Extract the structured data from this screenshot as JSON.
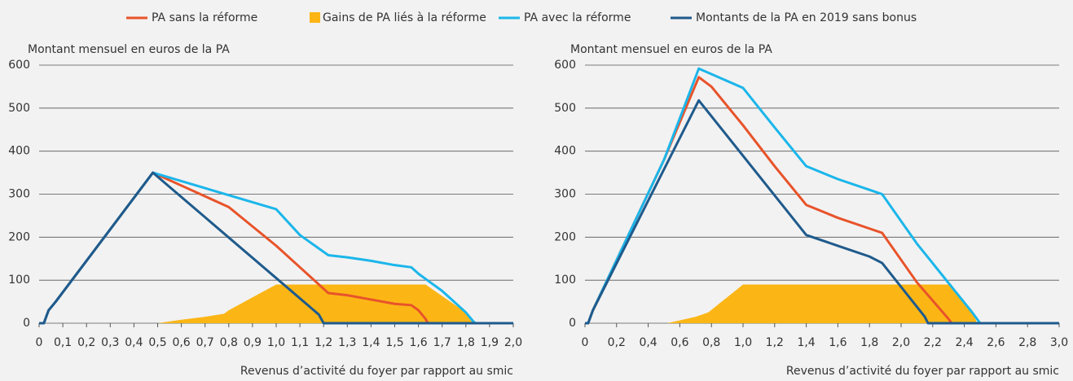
{
  "chart_data": [
    {
      "type": "line",
      "ylabel": "Montant mensuel en euros de la PA",
      "xlabel": "Revenus d’activité du foyer par rapport au smic",
      "xlim": [
        0,
        2
      ],
      "ylim": [
        0,
        600
      ],
      "xticks": [
        0,
        {
          "value": 0.1,
          "label": "0,1"
        },
        {
          "value": 0.2,
          "label": "0,2"
        },
        {
          "value": 0.3,
          "label": "0,3"
        },
        {
          "value": 0.4,
          "label": "0,4"
        },
        {
          "value": 0.5,
          "label": "0,5"
        },
        {
          "value": 0.6,
          "label": "0,6"
        },
        {
          "value": 0.7,
          "label": "0,7"
        },
        {
          "value": 0.8,
          "label": "0,8"
        },
        {
          "value": 0.9,
          "label": "0,9"
        },
        {
          "value": 1,
          "label": "1,0"
        },
        {
          "value": 1.1,
          "label": "1,1"
        },
        {
          "value": 1.2,
          "label": "1,2"
        },
        {
          "value": 1.3,
          "label": "1,3"
        },
        {
          "value": 1.4,
          "label": "1,4"
        },
        {
          "value": 1.5,
          "label": "1,5"
        },
        {
          "value": 1.6,
          "label": "1,6"
        },
        {
          "value": 1.7,
          "label": "1,7"
        },
        {
          "value": 1.8,
          "label": "1,8"
        },
        {
          "value": 1.9,
          "label": "1,9"
        },
        {
          "value": 2,
          "label": "2,0"
        }
      ],
      "yticks": [
        0,
        100,
        200,
        300,
        400,
        500,
        600
      ],
      "grid": true,
      "series": [
        {
          "name": "PA sans la réforme",
          "color": "#e8532a",
          "type": "line",
          "x": [
            0,
            0.02,
            0.04,
            0.07,
            0.48,
            0.6,
            0.7,
            0.8,
            0.9,
            1.0,
            1.1,
            1.22,
            1.3,
            1.4,
            1.5,
            1.57,
            1.6,
            1.63,
            1.64,
            2.0
          ],
          "values": [
            0,
            0,
            30,
            50,
            350,
            320,
            295,
            270,
            225,
            180,
            130,
            70,
            65,
            55,
            45,
            42,
            30,
            10,
            0,
            0
          ]
        },
        {
          "name": "Gains de PA liés à la réforme",
          "color": "#fbb616",
          "type": "area",
          "x": [
            0.5,
            0.6,
            0.7,
            0.78,
            0.8,
            0.9,
            1.0,
            1.63,
            1.8,
            1.82,
            1.83
          ],
          "values": [
            0,
            8,
            15,
            22,
            30,
            60,
            90,
            90,
            25,
            10,
            0
          ]
        },
        {
          "name": "PA avec la réforme",
          "color": "#1bb6ea",
          "type": "line",
          "x": [
            0,
            0.02,
            0.04,
            0.07,
            0.48,
            1.0,
            1.1,
            1.22,
            1.3,
            1.4,
            1.5,
            1.57,
            1.6,
            1.65,
            1.7,
            1.8,
            1.83,
            1.84,
            2.0
          ],
          "values": [
            0,
            0,
            30,
            50,
            350,
            265,
            205,
            158,
            153,
            145,
            135,
            130,
            115,
            95,
            75,
            25,
            5,
            0,
            0
          ]
        },
        {
          "name": "Montants de la PA en 2019 sans bonus",
          "color": "#1f5a8c",
          "type": "line",
          "x": [
            0,
            0.02,
            0.04,
            0.07,
            0.48,
            1.18,
            1.2,
            2.0
          ],
          "values": [
            0,
            0,
            30,
            50,
            350,
            20,
            0,
            0
          ]
        }
      ]
    },
    {
      "type": "line",
      "ylabel": "Montant mensuel en euros de la PA",
      "xlabel": "Revenus d’activité du foyer par rapport au smic",
      "xlim": [
        0,
        3
      ],
      "ylim": [
        0,
        600
      ],
      "xticks": [
        0,
        {
          "value": 0.2,
          "label": "0,2"
        },
        {
          "value": 0.4,
          "label": "0,4"
        },
        {
          "value": 0.6,
          "label": "0,6"
        },
        {
          "value": 0.8,
          "label": "0,8"
        },
        {
          "value": 1,
          "label": "1,0"
        },
        {
          "value": 1.2,
          "label": "1,2"
        },
        {
          "value": 1.4,
          "label": "1,4"
        },
        {
          "value": 1.6,
          "label": "1,6"
        },
        {
          "value": 1.8,
          "label": "1,8"
        },
        {
          "value": 2,
          "label": "2,0"
        },
        {
          "value": 2.2,
          "label": "2,2"
        },
        {
          "value": 2.4,
          "label": "2,4"
        },
        {
          "value": 2.6,
          "label": "2,6"
        },
        {
          "value": 2.8,
          "label": "2,8"
        },
        {
          "value": 3,
          "label": "3,0"
        }
      ],
      "yticks": [
        0,
        100,
        200,
        300,
        400,
        500,
        600
      ],
      "grid": true,
      "series": [
        {
          "color": "#e8532a",
          "type": "line",
          "x": [
            0,
            0.02,
            0.05,
            0.5,
            0.72,
            0.8,
            1.0,
            1.2,
            1.4,
            1.6,
            1.8,
            1.88,
            2.1,
            2.3,
            2.32,
            3.0
          ],
          "values": [
            0,
            0,
            30,
            380,
            572,
            550,
            460,
            365,
            275,
            245,
            220,
            210,
            95,
            10,
            0,
            0
          ]
        },
        {
          "color": "#fbb616",
          "type": "area",
          "x": [
            0.52,
            0.7,
            0.78,
            1.0,
            2.3,
            2.45,
            2.48
          ],
          "values": [
            0,
            15,
            25,
            90,
            90,
            30,
            0
          ]
        },
        {
          "color": "#1bb6ea",
          "type": "line",
          "x": [
            0,
            0.02,
            0.05,
            0.5,
            0.72,
            1.0,
            1.2,
            1.4,
            1.6,
            1.8,
            1.88,
            2.1,
            2.45,
            2.5,
            3.0
          ],
          "values": [
            0,
            0,
            30,
            380,
            592,
            547,
            455,
            365,
            335,
            310,
            300,
            185,
            25,
            0,
            0
          ]
        },
        {
          "color": "#1f5a8c",
          "type": "line",
          "x": [
            0,
            0.02,
            0.05,
            0.72,
            1.4,
            1.6,
            1.8,
            1.88,
            2.15,
            2.17,
            3.0
          ],
          "values": [
            0,
            0,
            30,
            518,
            205,
            180,
            155,
            140,
            15,
            0,
            0
          ]
        }
      ]
    }
  ]
}
